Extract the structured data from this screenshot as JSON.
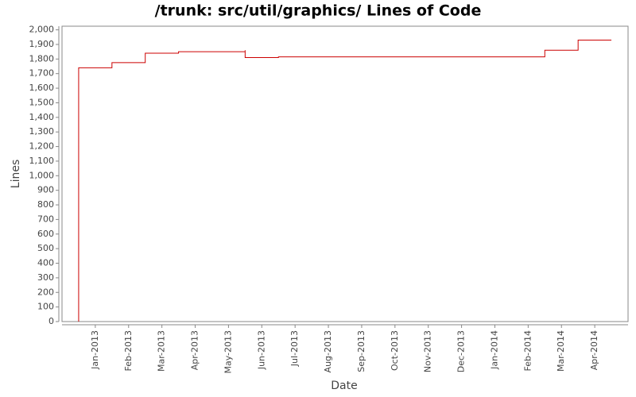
{
  "chart_data": {
    "type": "step",
    "title": "/trunk: src/util/graphics/ Lines of Code",
    "x_label": "Date",
    "y_label": "Lines",
    "series": [
      {
        "name": "Lines",
        "color": "#cc0000",
        "x": [
          "2012-12",
          "2012-12",
          "2012-12",
          "2012-12",
          "2012-12",
          "2012-12",
          "2013-01",
          "2013-02",
          "2013-02",
          "2013-02",
          "2013-03",
          "2013-05",
          "2013-05",
          "2013-06",
          "2014-02",
          "2014-02",
          "2014-03",
          "2014-03",
          "2014-04"
        ],
        "values": [
          0,
          1225,
          1215,
          1510,
          1730,
          1740,
          1775,
          1790,
          1800,
          1840,
          1850,
          1860,
          1810,
          1815,
          1820,
          1860,
          1900,
          1930,
          1930
        ]
      }
    ],
    "xlim": [
      "2012-12",
      "2014-05"
    ],
    "xticks": [
      {
        "value": "2013-01",
        "label": "Jan-2013"
      },
      {
        "value": "2013-02",
        "label": "Feb-2013"
      },
      {
        "value": "2013-03",
        "label": "Mar-2013"
      },
      {
        "value": "2013-04",
        "label": "Apr-2013"
      },
      {
        "value": "2013-05",
        "label": "May-2013"
      },
      {
        "value": "2013-06",
        "label": "Jun-2013"
      },
      {
        "value": "2013-07",
        "label": "Jul-2013"
      },
      {
        "value": "2013-08",
        "label": "Aug-2013"
      },
      {
        "value": "2013-09",
        "label": "Sep-2013"
      },
      {
        "value": "2013-10",
        "label": "Oct-2013"
      },
      {
        "value": "2013-11",
        "label": "Nov-2013"
      },
      {
        "value": "2013-12",
        "label": "Dec-2013"
      },
      {
        "value": "2014-01",
        "label": "Jan-2014"
      },
      {
        "value": "2014-02",
        "label": "Feb-2014"
      },
      {
        "value": "2014-03",
        "label": "Mar-2014"
      },
      {
        "value": "2014-04",
        "label": "Apr-2014"
      }
    ],
    "ylim": [
      0,
      2025
    ],
    "yticks": [
      0,
      100,
      200,
      300,
      400,
      500,
      600,
      700,
      800,
      900,
      {
        "value": 1000,
        "label": "1,000"
      },
      {
        "value": 1100,
        "label": "1,100"
      },
      {
        "value": 1200,
        "label": "1,200"
      },
      {
        "value": 1300,
        "label": "1,300"
      },
      {
        "value": 1400,
        "label": "1,400"
      },
      {
        "value": 1500,
        "label": "1,500"
      },
      {
        "value": 1600,
        "label": "1,600"
      },
      {
        "value": 1700,
        "label": "1,700"
      },
      {
        "value": 1800,
        "label": "1,800"
      },
      {
        "value": 1900,
        "label": "1,900"
      },
      {
        "value": 2000,
        "label": "2,000"
      }
    ]
  }
}
